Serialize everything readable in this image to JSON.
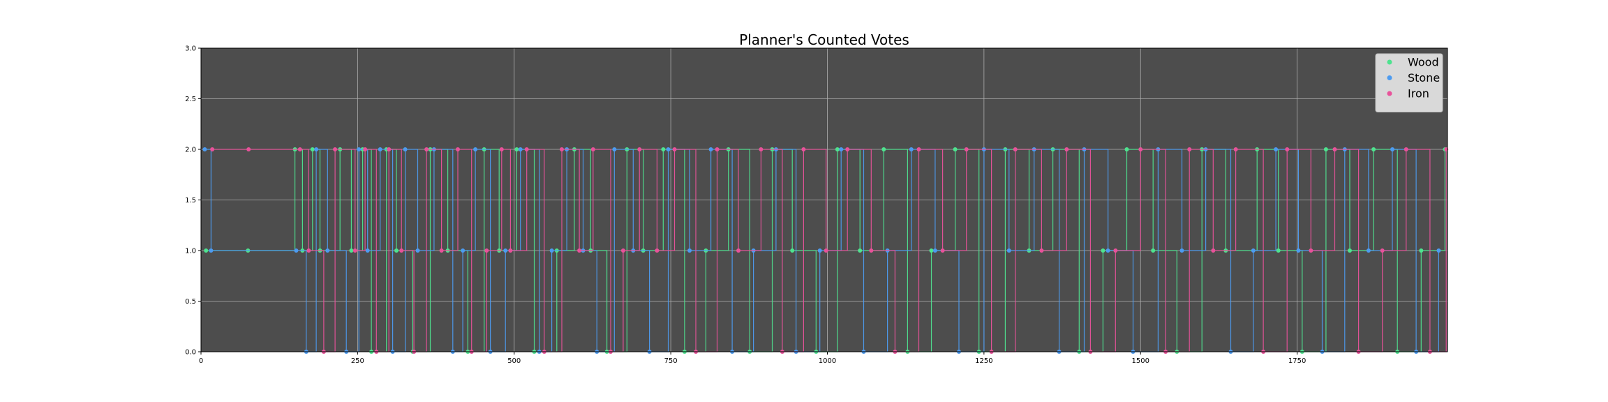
{
  "chart_data": {
    "type": "line",
    "title": "Planner's Counted Votes",
    "xlabel": "",
    "ylabel": "",
    "xlim": [
      0,
      1990
    ],
    "ylim": [
      0.0,
      3.0
    ],
    "x_ticks": [
      0,
      250,
      500,
      750,
      1000,
      1250,
      1500,
      1750
    ],
    "x_tick_labels": [
      "0",
      "250",
      "500",
      "750",
      "1000",
      "1250",
      "1500",
      "1750"
    ],
    "y_ticks": [
      0.0,
      0.5,
      1.0,
      1.5,
      2.0,
      2.5,
      3.0
    ],
    "y_tick_labels": [
      "0.0",
      "0.5",
      "1.0",
      "1.5",
      "2.0",
      "2.5",
      "3.0"
    ],
    "grid": true,
    "legend_position": "top-right",
    "background": "#4d4d4d",
    "marker": "circle",
    "series": [
      {
        "name": "Wood",
        "color": "#4ee38f",
        "x": [
          8,
          75,
          150,
          162,
          178,
          190,
          222,
          240,
          258,
          272,
          296,
          312,
          338,
          366,
          394,
          426,
          452,
          476,
          504,
          532,
          568,
          596,
          622,
          648,
          680,
          706,
          738,
          772,
          806,
          842,
          876,
          912,
          944,
          982,
          1016,
          1052,
          1090,
          1128,
          1166,
          1204,
          1242,
          1284,
          1322,
          1360,
          1402,
          1440,
          1478,
          1520,
          1558,
          1598,
          1636,
          1686,
          1720,
          1758,
          1796,
          1834,
          1872,
          1910,
          1948,
          1986
        ],
        "values": [
          1,
          1,
          2,
          1,
          2,
          1,
          2,
          1,
          2,
          0,
          2,
          1,
          0,
          2,
          1,
          0,
          2,
          1,
          2,
          0,
          1,
          2,
          1,
          0,
          2,
          1,
          2,
          0,
          1,
          2,
          0,
          2,
          1,
          0,
          2,
          1,
          2,
          0,
          1,
          2,
          0,
          2,
          1,
          2,
          0,
          1,
          2,
          1,
          0,
          2,
          1,
          2,
          1,
          0,
          2,
          1,
          2,
          0,
          1,
          2
        ]
      },
      {
        "name": "Stone",
        "color": "#4d9bf0",
        "x": [
          6,
          16,
          152,
          168,
          184,
          202,
          232,
          252,
          266,
          286,
          306,
          326,
          346,
          372,
          402,
          418,
          438,
          462,
          486,
          510,
          540,
          560,
          584,
          610,
          632,
          660,
          690,
          716,
          746,
          780,
          814,
          848,
          882,
          918,
          950,
          988,
          1022,
          1058,
          1096,
          1134,
          1172,
          1210,
          1250,
          1290,
          1330,
          1370,
          1410,
          1448,
          1488,
          1528,
          1566,
          1604,
          1644,
          1680,
          1716,
          1752,
          1790,
          1826,
          1864,
          1902,
          1940,
          1976
        ],
        "values": [
          2,
          1,
          1,
          0,
          2,
          1,
          0,
          2,
          1,
          2,
          0,
          2,
          1,
          2,
          0,
          1,
          2,
          0,
          1,
          2,
          0,
          1,
          2,
          1,
          0,
          2,
          1,
          0,
          2,
          1,
          2,
          0,
          1,
          2,
          0,
          1,
          2,
          0,
          1,
          2,
          1,
          0,
          2,
          1,
          2,
          0,
          2,
          1,
          0,
          2,
          1,
          2,
          0,
          1,
          2,
          1,
          0,
          2,
          1,
          2,
          0,
          1
        ]
      },
      {
        "name": "Iron",
        "color": "#e8529a",
        "x": [
          18,
          76,
          158,
          172,
          196,
          214,
          246,
          262,
          280,
          300,
          320,
          340,
          360,
          384,
          410,
          432,
          456,
          480,
          494,
          520,
          548,
          576,
          604,
          626,
          654,
          674,
          700,
          728,
          756,
          790,
          824,
          858,
          894,
          928,
          962,
          998,
          1032,
          1070,
          1108,
          1146,
          1184,
          1222,
          1262,
          1300,
          1342,
          1382,
          1420,
          1460,
          1500,
          1540,
          1578,
          1616,
          1652,
          1696,
          1734,
          1772,
          1810,
          1848,
          1886,
          1924,
          1962,
          1988
        ],
        "values": [
          2,
          2,
          2,
          1,
          0,
          2,
          1,
          2,
          0,
          2,
          1,
          0,
          2,
          1,
          2,
          0,
          1,
          2,
          1,
          2,
          0,
          2,
          1,
          2,
          0,
          1,
          2,
          1,
          2,
          0,
          2,
          1,
          2,
          0,
          2,
          1,
          2,
          1,
          0,
          2,
          1,
          2,
          0,
          2,
          1,
          2,
          0,
          1,
          2,
          0,
          2,
          1,
          2,
          0,
          2,
          1,
          2,
          0,
          1,
          2,
          0,
          2
        ]
      }
    ]
  }
}
